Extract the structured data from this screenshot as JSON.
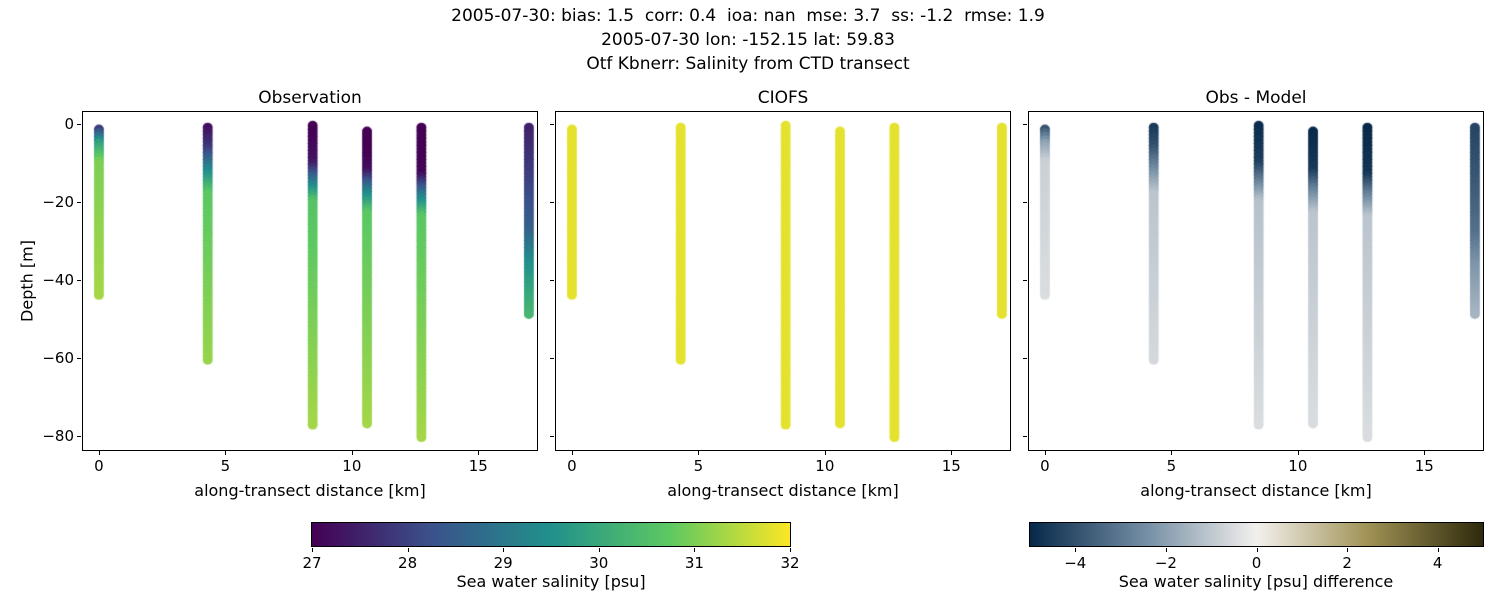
{
  "header": {
    "line1": "2005-07-30: bias: 1.5  corr: 0.4  ioa: nan  mse: 3.7  ss: -1.2  rmse: 1.9",
    "line2": "2005-07-30 lon: -152.15 lat: 59.83",
    "line3": "Otf Kbnerr: Salinity from CTD transect"
  },
  "chart_data": {
    "type": "scatter",
    "panels": [
      {
        "title": "Observation",
        "value": "obs"
      },
      {
        "title": "CIOFS",
        "value": "model"
      },
      {
        "title": "Obs - Model",
        "value": "diff"
      }
    ],
    "xlabel": "along-transect distance [km]",
    "ylabel": "Depth [m]",
    "xlim": [
      -0.63,
      17.32
    ],
    "ylim": [
      3,
      -83.5
    ],
    "xticks": [
      0,
      5,
      10,
      15
    ],
    "yticks": [
      0,
      -20,
      -40,
      -60,
      -80
    ],
    "model_salinity": 31.8,
    "stations": [
      {
        "x": 0.0,
        "top": -1.5,
        "bottom": -44,
        "profile": [
          [
            -1.5,
            27.9
          ],
          [
            -5,
            29.8
          ],
          [
            -10,
            31.0
          ],
          [
            -44,
            31.3
          ]
        ]
      },
      {
        "x": 4.3,
        "top": -1.0,
        "bottom": -61,
        "profile": [
          [
            -1,
            27.2
          ],
          [
            -6,
            27.8
          ],
          [
            -12,
            29.3
          ],
          [
            -18,
            30.7
          ],
          [
            -61,
            31.2
          ]
        ]
      },
      {
        "x": 8.45,
        "top": -0.5,
        "bottom": -77.5,
        "profile": [
          [
            -0.5,
            26.9
          ],
          [
            -10,
            27.3
          ],
          [
            -15,
            29.0
          ],
          [
            -20,
            30.6
          ],
          [
            -77.5,
            31.3
          ]
        ]
      },
      {
        "x": 10.6,
        "top": -2.0,
        "bottom": -77.5,
        "profile": [
          [
            -2,
            26.8
          ],
          [
            -12,
            27.2
          ],
          [
            -17,
            29.0
          ],
          [
            -23,
            30.7
          ],
          [
            -77.5,
            31.3
          ]
        ]
      },
      {
        "x": 12.75,
        "top": -1.0,
        "bottom": -81,
        "profile": [
          [
            -1,
            26.8
          ],
          [
            -13,
            27.1
          ],
          [
            -18,
            28.9
          ],
          [
            -24,
            30.7
          ],
          [
            -81,
            31.3
          ]
        ]
      },
      {
        "x": 17.0,
        "top": -1.0,
        "bottom": -49,
        "profile": [
          [
            -1,
            27.5
          ],
          [
            -15,
            28.0
          ],
          [
            -28,
            28.6
          ],
          [
            -36,
            29.5
          ],
          [
            -49,
            30.3
          ]
        ]
      }
    ],
    "colorbars": [
      {
        "cmap": "viridis",
        "vmin": 27,
        "vmax": 32,
        "ticks": [
          27,
          28,
          29,
          30,
          31,
          32
        ],
        "label": "Sea water salinity [psu]"
      },
      {
        "cmap": "diff",
        "vmin": -5,
        "vmax": 5,
        "ticks": [
          -4,
          -2,
          0,
          2,
          4
        ],
        "label": "Sea water salinity [psu] difference"
      }
    ],
    "colormaps": {
      "viridis": [
        [
          0,
          "#440154"
        ],
        [
          0.25,
          "#3b528b"
        ],
        [
          0.5,
          "#21918c"
        ],
        [
          0.75,
          "#5ec962"
        ],
        [
          1,
          "#fde725"
        ]
      ],
      "diff": [
        [
          0,
          "#07294a"
        ],
        [
          0.25,
          "#728ca3"
        ],
        [
          0.5,
          "#f3f1ee"
        ],
        [
          0.75,
          "#9f9154"
        ],
        [
          1,
          "#2e2a0c"
        ]
      ]
    }
  }
}
